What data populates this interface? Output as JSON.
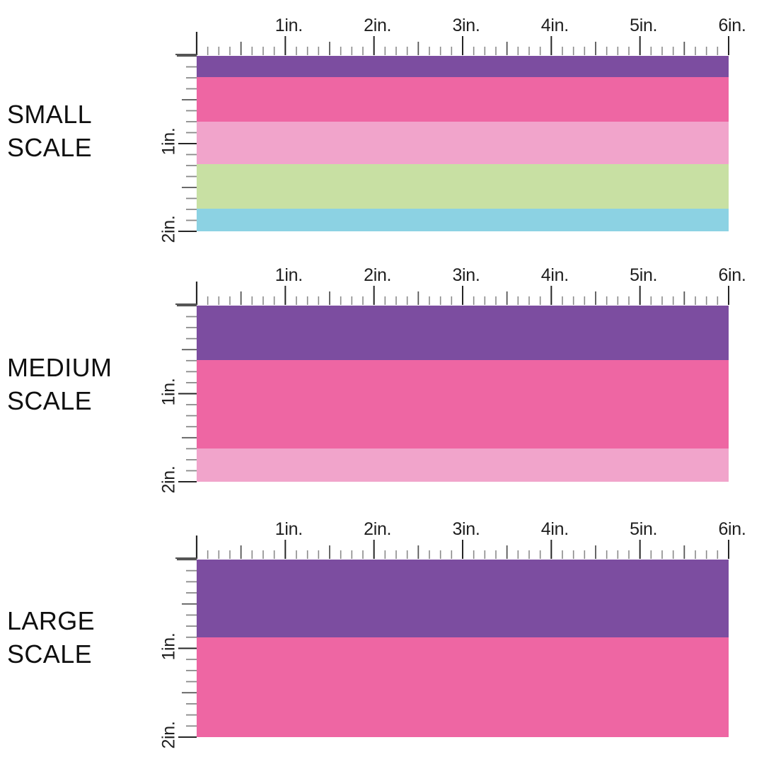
{
  "page": {
    "background": "#ffffff",
    "text_color": "#0f0f0f"
  },
  "palette": {
    "purple": "#7C4DA0",
    "hot_pink": "#EE66A3",
    "light_pink": "#F1A4CB",
    "green": "#C8E0A3",
    "blue": "#8CD2E3",
    "tick_minor": "#8a8a8a",
    "tick_half": "#555555",
    "tick_major": "#262626",
    "axis_label": "#1f1f1f"
  },
  "chart_data": [
    {
      "type": "bar",
      "subtype": "horizontal-stripe-swatch-with-rulers",
      "title": "SMALL SCALE",
      "title_lines": [
        "SMALL",
        "SCALE"
      ],
      "x_axis": {
        "range_in": [
          0,
          6
        ],
        "ticks_in": [
          1,
          2,
          3,
          4,
          5,
          6
        ],
        "tick_labels": [
          "1in.",
          "2in.",
          "3in.",
          "4in.",
          "5in.",
          "6in."
        ],
        "minor_per_inch": 8
      },
      "y_axis": {
        "range_in": [
          0,
          2
        ],
        "ticks_in": [
          1,
          2
        ],
        "tick_labels": [
          "1in.",
          "2in."
        ],
        "minor_per_inch": 8
      },
      "stripe_repeat_in": 0.5,
      "stripes": [
        {
          "name": "purple",
          "color": "#7C4DA0",
          "height_in": 0.24
        },
        {
          "name": "hot-pink",
          "color": "#EE66A3",
          "height_in": 0.51
        },
        {
          "name": "light-pink",
          "color": "#F1A4CB",
          "height_in": 0.48
        },
        {
          "name": "green",
          "color": "#C8E0A3",
          "height_in": 0.51
        },
        {
          "name": "blue",
          "color": "#8CD2E3",
          "height_in": 0.26
        }
      ]
    },
    {
      "type": "bar",
      "subtype": "horizontal-stripe-swatch-with-rulers",
      "title": "MEDIUM SCALE",
      "title_lines": [
        "MEDIUM",
        "SCALE"
      ],
      "x_axis": {
        "range_in": [
          0,
          6
        ],
        "ticks_in": [
          1,
          2,
          3,
          4,
          5,
          6
        ],
        "tick_labels": [
          "1in.",
          "2in.",
          "3in.",
          "4in.",
          "5in.",
          "6in."
        ],
        "minor_per_inch": 8
      },
      "y_axis": {
        "range_in": [
          0,
          2
        ],
        "ticks_in": [
          1,
          2
        ],
        "tick_labels": [
          "1in.",
          "2in."
        ],
        "minor_per_inch": 8
      },
      "stripe_repeat_in": 1,
      "stripes": [
        {
          "name": "purple",
          "color": "#7C4DA0",
          "height_in": 0.62
        },
        {
          "name": "hot-pink",
          "color": "#EE66A3",
          "height_in": 1.0
        },
        {
          "name": "light-pink",
          "color": "#F1A4CB",
          "height_in": 0.38
        }
      ]
    },
    {
      "type": "bar",
      "subtype": "horizontal-stripe-swatch-with-rulers",
      "title": "LARGE SCALE",
      "title_lines": [
        "LARGE",
        "SCALE"
      ],
      "x_axis": {
        "range_in": [
          0,
          6
        ],
        "ticks_in": [
          1,
          2,
          3,
          4,
          5,
          6
        ],
        "tick_labels": [
          "1in.",
          "2in.",
          "3in.",
          "4in.",
          "5in.",
          "6in."
        ],
        "minor_per_inch": 8
      },
      "y_axis": {
        "range_in": [
          0,
          2
        ],
        "ticks_in": [
          1,
          2
        ],
        "tick_labels": [
          "1in.",
          "2in."
        ],
        "minor_per_inch": 8
      },
      "stripe_repeat_in": 2,
      "stripes": [
        {
          "name": "purple",
          "color": "#7C4DA0",
          "height_in": 0.88
        },
        {
          "name": "hot-pink",
          "color": "#EE66A3",
          "height_in": 1.12
        }
      ]
    }
  ]
}
